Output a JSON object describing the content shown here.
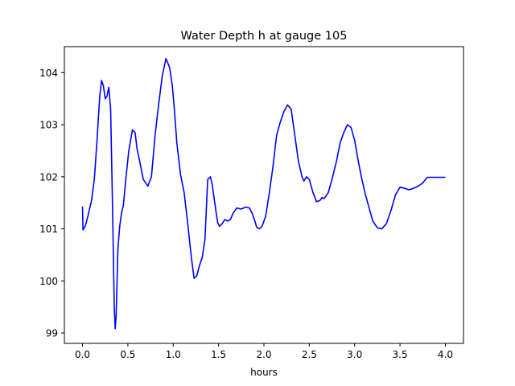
{
  "chart_data": {
    "type": "line",
    "title": "Water Depth h at gauge 105",
    "xlabel": "hours",
    "ylabel": "",
    "xlim": [
      -0.2,
      4.2
    ],
    "ylim": [
      98.8,
      104.5
    ],
    "xticks": [
      0.0,
      0.5,
      1.0,
      1.5,
      2.0,
      2.5,
      3.0,
      3.5,
      4.0
    ],
    "xtick_labels": [
      "0.0",
      "0.5",
      "1.0",
      "1.5",
      "2.0",
      "2.5",
      "3.0",
      "3.5",
      "4.0"
    ],
    "yticks": [
      99,
      100,
      101,
      102,
      103,
      104
    ],
    "ytick_labels": [
      "99",
      "100",
      "101",
      "102",
      "103",
      "104"
    ],
    "grid": false,
    "series": [
      {
        "color": "#0000ff",
        "x": [
          0.0,
          0.005,
          0.03,
          0.06,
          0.1,
          0.13,
          0.16,
          0.19,
          0.21,
          0.23,
          0.25,
          0.27,
          0.29,
          0.31,
          0.33,
          0.35,
          0.36,
          0.37,
          0.39,
          0.41,
          0.43,
          0.45,
          0.48,
          0.51,
          0.55,
          0.58,
          0.6,
          0.63,
          0.67,
          0.72,
          0.76,
          0.8,
          0.84,
          0.88,
          0.92,
          0.96,
          0.99,
          1.01,
          1.04,
          1.08,
          1.12,
          1.16,
          1.2,
          1.23,
          1.26,
          1.29,
          1.32,
          1.35,
          1.38,
          1.41,
          1.43,
          1.45,
          1.47,
          1.49,
          1.51,
          1.54,
          1.57,
          1.6,
          1.63,
          1.66,
          1.7,
          1.75,
          1.8,
          1.84,
          1.87,
          1.9,
          1.92,
          1.95,
          1.98,
          2.02,
          2.06,
          2.1,
          2.14,
          2.18,
          2.22,
          2.26,
          2.3,
          2.34,
          2.38,
          2.42,
          2.44,
          2.47,
          2.5,
          2.54,
          2.58,
          2.62,
          2.64,
          2.66,
          2.68,
          2.71,
          2.75,
          2.8,
          2.84,
          2.88,
          2.92,
          2.96,
          3.0,
          3.04,
          3.08,
          3.12,
          3.16,
          3.2,
          3.25,
          3.3,
          3.35,
          3.4,
          3.45,
          3.5,
          3.55,
          3.6,
          3.65,
          3.7,
          3.75,
          3.8,
          3.85,
          3.9,
          3.95,
          4.0
        ],
        "y": [
          101.43,
          100.98,
          101.05,
          101.25,
          101.55,
          101.95,
          102.7,
          103.55,
          103.85,
          103.75,
          103.5,
          103.55,
          103.72,
          103.3,
          101.5,
          99.5,
          99.08,
          99.3,
          100.6,
          101.05,
          101.3,
          101.45,
          102.0,
          102.5,
          102.9,
          102.85,
          102.55,
          102.3,
          101.95,
          101.82,
          102.0,
          102.8,
          103.4,
          103.95,
          104.27,
          104.1,
          103.75,
          103.35,
          102.65,
          102.05,
          101.7,
          101.1,
          100.45,
          100.05,
          100.1,
          100.3,
          100.45,
          100.8,
          101.95,
          102.0,
          101.85,
          101.6,
          101.35,
          101.12,
          101.05,
          101.1,
          101.18,
          101.15,
          101.18,
          101.3,
          101.4,
          101.38,
          101.42,
          101.4,
          101.3,
          101.15,
          101.03,
          101.0,
          101.05,
          101.25,
          101.7,
          102.2,
          102.8,
          103.05,
          103.25,
          103.38,
          103.3,
          102.8,
          102.3,
          102.0,
          101.92,
          102.0,
          101.95,
          101.7,
          101.52,
          101.55,
          101.6,
          101.58,
          101.62,
          101.7,
          101.95,
          102.3,
          102.65,
          102.85,
          103.0,
          102.95,
          102.7,
          102.3,
          101.95,
          101.65,
          101.4,
          101.15,
          101.02,
          101.0,
          101.1,
          101.35,
          101.65,
          101.8,
          101.78,
          101.75,
          101.78,
          101.82,
          101.88,
          101.99,
          101.99,
          101.99,
          101.99,
          101.99
        ]
      }
    ]
  }
}
